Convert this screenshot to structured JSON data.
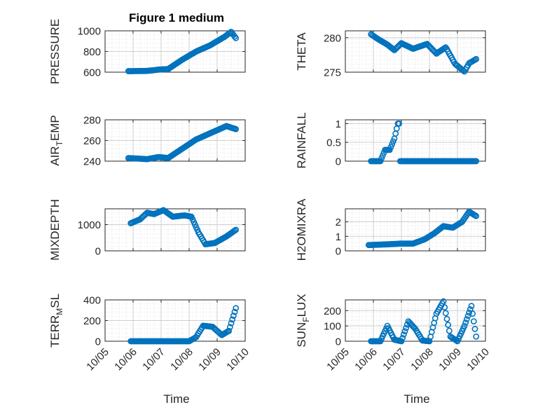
{
  "figure": {
    "title": "Figure 1 medium",
    "xlabel": "Time",
    "x_ticks": [
      "10/05",
      "10/06",
      "10/07",
      "10/08",
      "10/09",
      "10/10"
    ],
    "colors": {
      "marker": "#0072BD",
      "axis": "#262626",
      "grid": "#dfdfdf"
    }
  },
  "chart_data": [
    {
      "type": "scatter",
      "ylabel": "PRESSURE",
      "title": "Figure 1 medium",
      "ylim": [
        600,
        1000
      ],
      "yticks": [
        600,
        800,
        1000
      ],
      "grid": true,
      "x": [
        "10/05 20:00",
        "10/06 12:00",
        "10/06 22:00",
        "10/07 06:00",
        "10/07 18:00",
        "10/08 06:00",
        "10/08 18:00",
        "10/09 06:00",
        "10/09 12:00",
        "10/09 16:00"
      ],
      "y": [
        610,
        612,
        625,
        630,
        720,
        800,
        860,
        940,
        990,
        930
      ]
    },
    {
      "type": "scatter",
      "ylabel": "THETA",
      "ylim": [
        275,
        281
      ],
      "yticks": [
        275,
        280
      ],
      "grid": true,
      "x": [
        "10/05 22:00",
        "10/06 04:00",
        "10/06 12:00",
        "10/06 18:00",
        "10/07 00:00",
        "10/07 10:00",
        "10/07 22:00",
        "10/08 06:00",
        "10/08 14:00",
        "10/08 22:00",
        "10/09 06:00",
        "10/09 10:00",
        "10/09 16:00"
      ],
      "y": [
        280.5,
        279.8,
        279.0,
        278.2,
        279.2,
        278.4,
        279.1,
        277.7,
        278.6,
        276.2,
        275.1,
        276.3,
        276.9
      ]
    },
    {
      "type": "scatter",
      "ylabel": "AIR_TEMP",
      "ylabel_display": [
        "AIR",
        "T",
        "EMP"
      ],
      "ylim": [
        240,
        280
      ],
      "yticks": [
        240,
        260,
        280
      ],
      "grid": true,
      "x": [
        "10/05 20:00",
        "10/06 12:00",
        "10/06 22:00",
        "10/07 06:00",
        "10/07 18:00",
        "10/08 06:00",
        "10/08 18:00",
        "10/09 08:00",
        "10/09 16:00"
      ],
      "y": [
        243,
        242,
        244,
        243,
        252,
        261,
        267,
        274,
        271
      ]
    },
    {
      "type": "scatter",
      "ylabel": "RAINFALL",
      "ylim": [
        0,
        1.1
      ],
      "yticks": [
        0,
        0.5,
        1
      ],
      "grid": true,
      "x": [
        "10/05 22:00",
        "10/06 06:00",
        "10/06 10:00",
        "10/06 14:00",
        "10/06 18:00",
        "10/06 21:00",
        "10/06 22:00",
        "10/06 23:00",
        "10/07 06:00",
        "10/08 06:00",
        "10/09 06:00",
        "10/09 16:00"
      ],
      "y": [
        0,
        0,
        0.3,
        0.3,
        0.6,
        1.0,
        1.0,
        0,
        0,
        0,
        0,
        0
      ]
    },
    {
      "type": "scatter",
      "ylabel": "MIXDEPTH",
      "ylim": [
        0,
        1600
      ],
      "yticks": [
        0,
        1000
      ],
      "grid": true,
      "x": [
        "10/05 22:00",
        "10/06 06:00",
        "10/06 12:00",
        "10/06 18:00",
        "10/07 02:00",
        "10/07 10:00",
        "10/07 20:00",
        "10/08 02:00",
        "10/08 08:00",
        "10/08 14:00",
        "10/08 22:00",
        "10/09 08:00",
        "10/09 16:00"
      ],
      "y": [
        1050,
        1200,
        1450,
        1400,
        1550,
        1300,
        1350,
        1300,
        700,
        250,
        300,
        550,
        800
      ]
    },
    {
      "type": "scatter",
      "ylabel": "H2OMIXRA",
      "ylim": [
        0,
        2.9
      ],
      "yticks": [
        0,
        1,
        2
      ],
      "grid": true,
      "x": [
        "10/05 20:00",
        "10/06 12:00",
        "10/07 00:00",
        "10/07 10:00",
        "10/07 20:00",
        "10/08 04:00",
        "10/08 12:00",
        "10/08 20:00",
        "10/09 04:00",
        "10/09 10:00",
        "10/09 16:00"
      ],
      "y": [
        0.4,
        0.45,
        0.5,
        0.5,
        0.8,
        1.2,
        1.7,
        1.6,
        2.0,
        2.7,
        2.4
      ]
    },
    {
      "type": "scatter",
      "ylabel": "TERR_MSL",
      "ylabel_display": [
        "TERR",
        "M",
        "SL"
      ],
      "ylim": [
        0,
        400
      ],
      "yticks": [
        0,
        200,
        400
      ],
      "grid": true,
      "x": [
        "10/05 22:00",
        "10/06 12:00",
        "10/07 00:00",
        "10/07 12:00",
        "10/08 00:00",
        "10/08 06:00",
        "10/08 12:00",
        "10/08 20:00",
        "10/09 04:00",
        "10/09 10:00",
        "10/09 16:00"
      ],
      "y": [
        0,
        0,
        0,
        0,
        0,
        40,
        150,
        140,
        60,
        100,
        320
      ]
    },
    {
      "type": "scatter",
      "ylabel": "SUN_FLUX",
      "ylabel_display": [
        "SUN",
        "F",
        "LUX"
      ],
      "ylim": [
        0,
        270
      ],
      "yticks": [
        0,
        100,
        200
      ],
      "grid": true,
      "x": [
        "10/05 22:00",
        "10/06 06:00",
        "10/06 12:00",
        "10/06 18:00",
        "10/07 00:00",
        "10/07 06:00",
        "10/07 12:00",
        "10/07 18:00",
        "10/08 00:00",
        "10/08 06:00",
        "10/08 12:00",
        "10/08 18:00",
        "10/09 00:00",
        "10/09 06:00",
        "10/09 12:00",
        "10/09 16:00"
      ],
      "y": [
        0,
        0,
        100,
        10,
        0,
        130,
        80,
        5,
        0,
        180,
        260,
        30,
        0,
        100,
        230,
        30
      ]
    }
  ]
}
